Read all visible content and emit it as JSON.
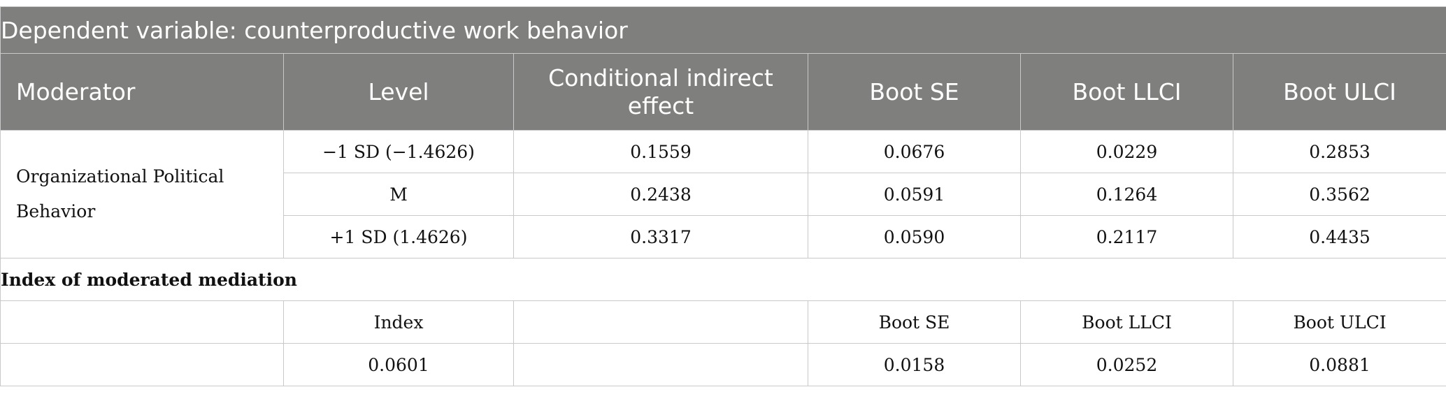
{
  "table": {
    "title": "Dependent variable: counterproductive work behavior",
    "headers": [
      "Moderator",
      "Level",
      "Conditional indirect effect",
      "Boot SE",
      "Boot LLCI",
      "Boot ULCI"
    ],
    "moderator": "Organizational Political Behavior",
    "rows": [
      {
        "level": "−1 SD (−1.4626)",
        "effect": "0.1559",
        "se": "0.0676",
        "llci": "0.0229",
        "ulci": "0.2853"
      },
      {
        "level": "M",
        "effect": "0.2438",
        "se": "0.0591",
        "llci": "0.1264",
        "ulci": "0.3562"
      },
      {
        "level": "+1 SD (1.4626)",
        "effect": "0.3317",
        "se": "0.0590",
        "llci": "0.2117",
        "ulci": "0.4435"
      }
    ],
    "index_section": {
      "label": "Index of moderated mediation",
      "headers": [
        "",
        "Index",
        "",
        "Boot SE",
        "Boot LLCI",
        "Boot ULCI"
      ],
      "values": [
        "",
        "0.0601",
        "",
        "0.0158",
        "0.0252",
        "0.0881"
      ]
    }
  }
}
